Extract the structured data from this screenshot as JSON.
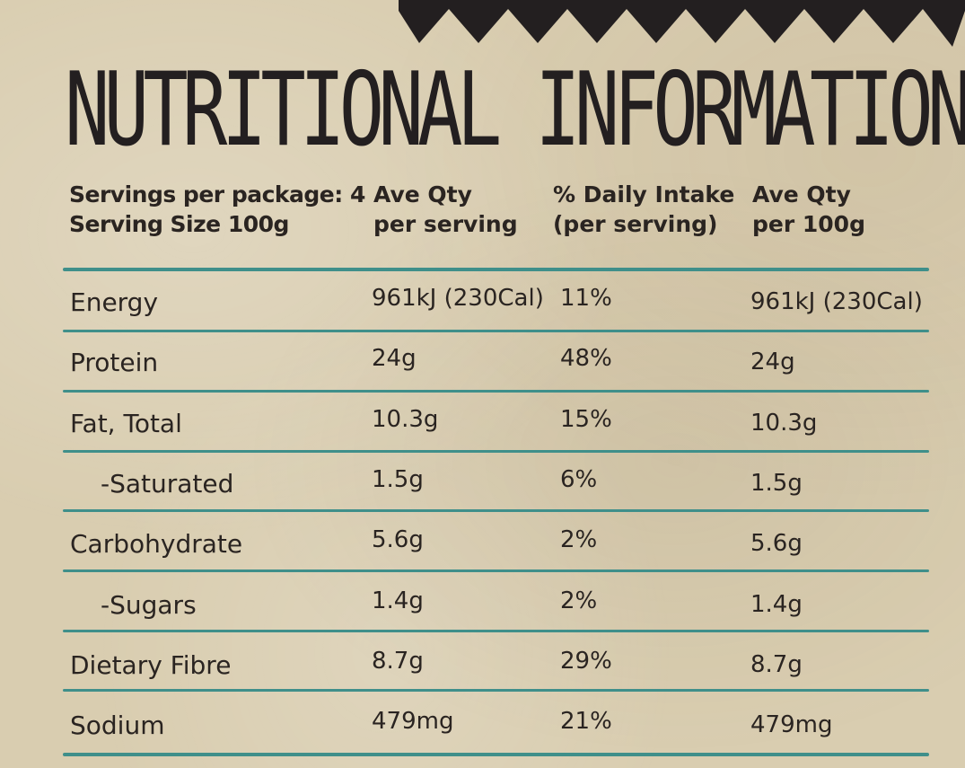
{
  "title": "NUTRITIONAL INFORMATION",
  "colors": {
    "background": "#d9cdb0",
    "rule": "#3f8f8a",
    "text": "#2a2421",
    "zigzag": "#231f20"
  },
  "header": {
    "col1_line1": "Servings per package: 4",
    "col1_line2": "Serving Size 100g",
    "col2_line1": "Ave Qty",
    "col2_line2": "per serving",
    "col3_line1": "% Daily Intake",
    "col3_line2": "(per serving)",
    "col4_line1": "Ave Qty",
    "col4_line2": "per 100g"
  },
  "rows": [
    {
      "name": "Energy",
      "per_serving": "961kJ (230Cal)",
      "daily_intake": "11%",
      "per_100g": "961kJ (230Cal)"
    },
    {
      "name": "Protein",
      "per_serving": "24g",
      "daily_intake": "48%",
      "per_100g": "24g"
    },
    {
      "name": "Fat, Total",
      "per_serving": "10.3g",
      "daily_intake": "15%",
      "per_100g": "10.3g"
    },
    {
      "name": "-Saturated",
      "per_serving": "1.5g",
      "daily_intake": "6%",
      "per_100g": "1.5g"
    },
    {
      "name": "Carbohydrate",
      "per_serving": "5.6g",
      "daily_intake": "2%",
      "per_100g": "5.6g"
    },
    {
      "name": "-Sugars",
      "per_serving": "1.4g",
      "daily_intake": "2%",
      "per_100g": "1.4g"
    },
    {
      "name": "Dietary Fibre",
      "per_serving": "8.7g",
      "daily_intake": "29%",
      "per_100g": "8.7g"
    },
    {
      "name": "Sodium",
      "per_serving": "479mg",
      "daily_intake": "21%",
      "per_100g": "479mg"
    }
  ]
}
